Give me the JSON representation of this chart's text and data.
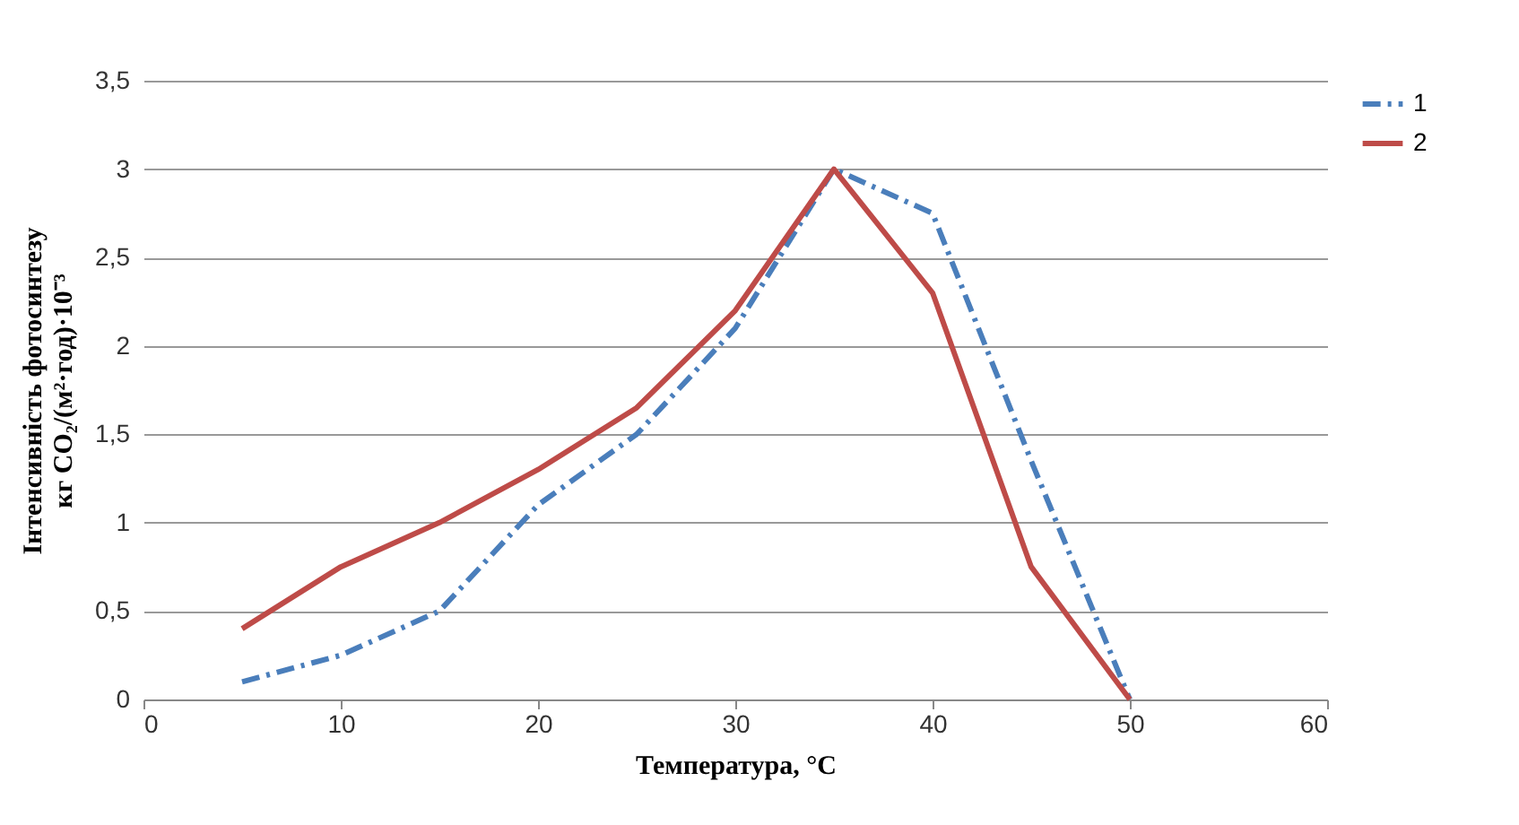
{
  "chart_data": {
    "type": "line",
    "xlabel": "Температура, °C",
    "ylabel": "Інтенсивність фотосинтезу\nкг CO₂/(м²·год)·10⁻³",
    "x": [
      5,
      10,
      15,
      20,
      25,
      30,
      35,
      40,
      45,
      50
    ],
    "series": [
      {
        "name": "1",
        "color": "#4a7ebb",
        "line_style": "dashed",
        "values": [
          0.1,
          0.25,
          0.5,
          1.1,
          1.5,
          2.1,
          3.0,
          2.75,
          1.35,
          0
        ]
      },
      {
        "name": "2",
        "color": "#be4b48",
        "line_style": "solid",
        "values": [
          0.4,
          0.75,
          1.0,
          1.3,
          1.65,
          2.2,
          3.0,
          2.3,
          0.75,
          0
        ]
      }
    ],
    "xlim": [
      0,
      60
    ],
    "xticks": [
      0,
      10,
      20,
      30,
      40,
      50,
      60
    ],
    "ylim": [
      0,
      3.5
    ],
    "yticks": [
      0,
      {
        "value": 0.5,
        "label": "0,5"
      },
      1,
      {
        "value": 1.5,
        "label": "1,5"
      },
      2,
      {
        "value": 2.5,
        "label": "2,5"
      },
      3,
      {
        "value": 3.5,
        "label": "3,5"
      }
    ],
    "grid": "y",
    "legend": "right",
    "marker": "none"
  }
}
